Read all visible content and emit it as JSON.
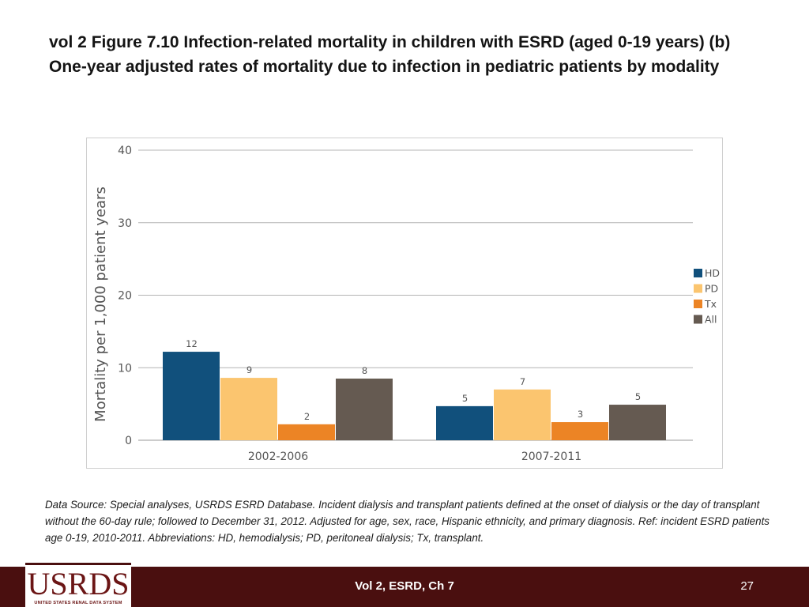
{
  "slide": {
    "title": "vol 2 Figure 7.10 Infection-related mortality in children with ESRD (aged 0-19 years) (b) One-year adjusted rates of mortality due to infection in pediatric patients by modality",
    "source": "Data Source: Special analyses, USRDS ESRD Database. Incident dialysis and transplant patients defined at the onset of dialysis or the day of transplant without the 60-day rule; followed to December 31, 2012. Adjusted for age, sex, race, Hispanic ethnicity, and primary diagnosis. Ref: incident ESRD patients age 0-19, 2010-2011. Abbreviations: HD, hemodialysis; PD, peritoneal dialysis; Tx, transplant."
  },
  "footer": {
    "center_text": "Vol 2, ESRD, Ch 7",
    "page_number": "27",
    "logo_text": "USRDS",
    "logo_subtext": "UNITED STATES RENAL DATA SYSTEM"
  },
  "chart_data": {
    "type": "bar",
    "title": "",
    "xlabel": "",
    "ylabel": "Mortality per 1,000 patient years",
    "ylim": [
      0,
      40
    ],
    "yticks": [
      0,
      10,
      20,
      30,
      40
    ],
    "categories": [
      "2002-2006",
      "2007-2011"
    ],
    "series": [
      {
        "name": "HD",
        "color": "#11507c",
        "values": [
          12.2,
          4.7
        ],
        "labels": [
          "12",
          "5"
        ]
      },
      {
        "name": "PD",
        "color": "#fbc56f",
        "values": [
          8.6,
          7.0
        ],
        "labels": [
          "9",
          "7"
        ]
      },
      {
        "name": "Tx",
        "color": "#ec8425",
        "values": [
          2.2,
          2.5
        ],
        "labels": [
          "2",
          "3"
        ]
      },
      {
        "name": "All",
        "color": "#655a51",
        "values": [
          8.5,
          4.9
        ],
        "labels": [
          "8",
          "5"
        ]
      }
    ],
    "legend_position": "right",
    "grid": true
  }
}
